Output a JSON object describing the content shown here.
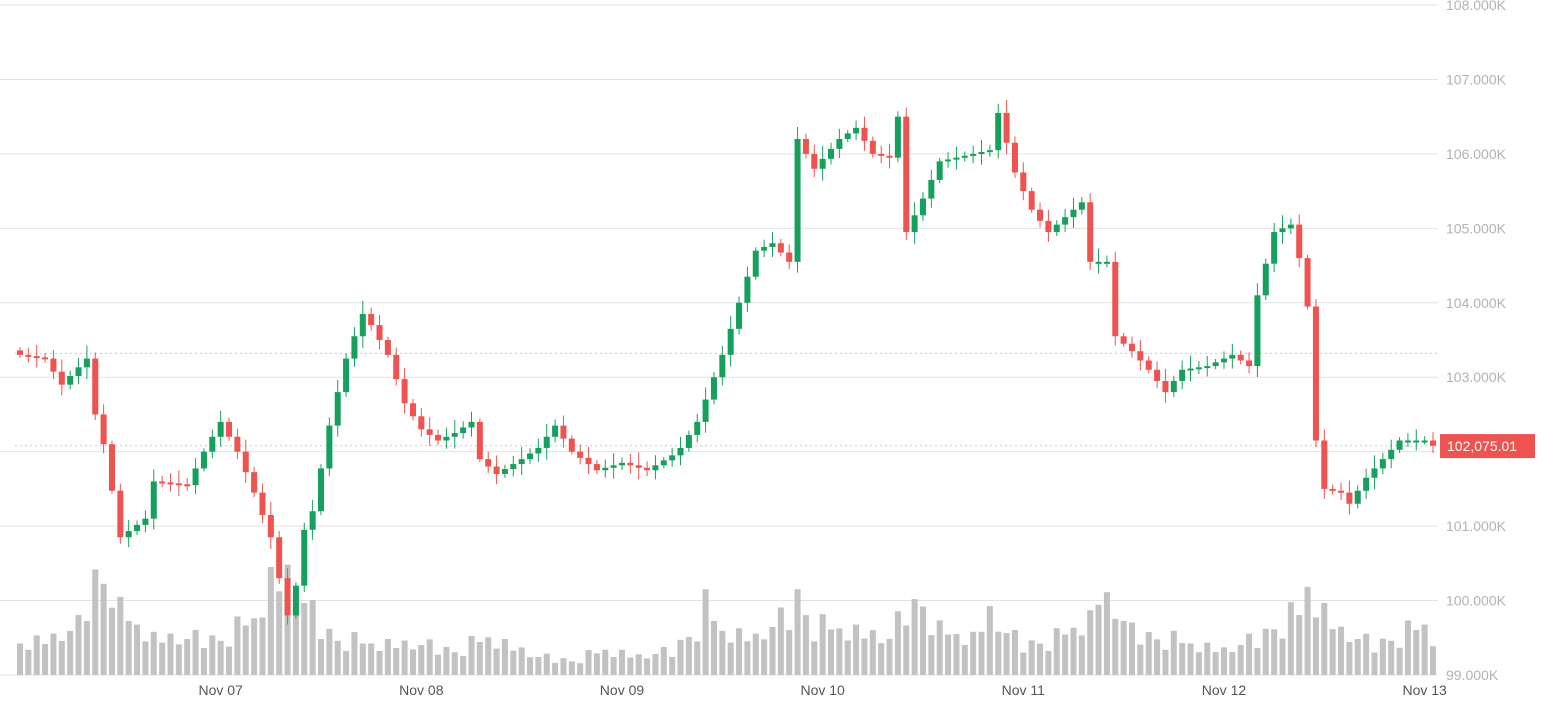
{
  "chart_data": {
    "type": "candlestick",
    "title": "",
    "xlabel": "",
    "ylabel": "",
    "ylim": [
      99000,
      108000
    ],
    "grid": true,
    "y_ticks": [
      {
        "value": 99000,
        "label": "99.000K"
      },
      {
        "value": 100000,
        "label": "100.000K"
      },
      {
        "value": 101000,
        "label": "101.000K"
      },
      {
        "value": 102000,
        "label": "102.000K"
      },
      {
        "value": 103000,
        "label": "103.000K"
      },
      {
        "value": 104000,
        "label": "104.000K"
      },
      {
        "value": 105000,
        "label": "105.000K"
      },
      {
        "value": 106000,
        "label": "106.000K"
      },
      {
        "value": 107000,
        "label": "107.000K"
      },
      {
        "value": 108000,
        "label": "108.000K"
      }
    ],
    "x_ticks": [
      {
        "index": 24,
        "label": "Nov 07"
      },
      {
        "index": 48,
        "label": "Nov 08"
      },
      {
        "index": 72,
        "label": "Nov 09"
      },
      {
        "index": 96,
        "label": "Nov 10"
      },
      {
        "index": 120,
        "label": "Nov 11"
      },
      {
        "index": 144,
        "label": "Nov 12"
      },
      {
        "index": 168,
        "label": "Nov 13"
      }
    ],
    "reference_lines": [
      103320,
      102080
    ],
    "last_price": {
      "value": 102075.01,
      "label": "102,075.01"
    },
    "colors": {
      "up": "#16a05d",
      "down": "#ef5350",
      "volume": "#c2c2c2",
      "grid": "#e3e3e3",
      "badge": "#ef5350"
    },
    "anchors": [
      [
        0,
        103300
      ],
      [
        3,
        103250
      ],
      [
        5,
        102900
      ],
      [
        8,
        103250
      ],
      [
        9,
        102500
      ],
      [
        10,
        102100
      ],
      [
        12,
        100850
      ],
      [
        15,
        101100
      ],
      [
        16,
        101600
      ],
      [
        20,
        101550
      ],
      [
        22,
        102000
      ],
      [
        24,
        102400
      ],
      [
        26,
        102000
      ],
      [
        28,
        101450
      ],
      [
        30,
        100850
      ],
      [
        31,
        100300
      ],
      [
        32,
        99800
      ],
      [
        33,
        100200
      ],
      [
        34,
        100950
      ],
      [
        35,
        101200
      ],
      [
        37,
        102350
      ],
      [
        39,
        103250
      ],
      [
        41,
        103850
      ],
      [
        42,
        103700
      ],
      [
        44,
        103300
      ],
      [
        46,
        102650
      ],
      [
        48,
        102300
      ],
      [
        50,
        102150
      ],
      [
        52,
        102250
      ],
      [
        54,
        102400
      ],
      [
        55,
        101900
      ],
      [
        57,
        101700
      ],
      [
        60,
        101900
      ],
      [
        62,
        102050
      ],
      [
        64,
        102350
      ],
      [
        66,
        102000
      ],
      [
        69,
        101750
      ],
      [
        72,
        101850
      ],
      [
        75,
        101750
      ],
      [
        78,
        101950
      ],
      [
        79,
        102050
      ],
      [
        81,
        102400
      ],
      [
        84,
        103300
      ],
      [
        86,
        104000
      ],
      [
        88,
        104700
      ],
      [
        90,
        104800
      ],
      [
        92,
        104550
      ],
      [
        93,
        106200
      ],
      [
        95,
        105800
      ],
      [
        98,
        106200
      ],
      [
        100,
        106350
      ],
      [
        102,
        106000
      ],
      [
        104,
        105950
      ],
      [
        105,
        106500
      ],
      [
        106,
        104950
      ],
      [
        108,
        105400
      ],
      [
        110,
        105900
      ],
      [
        112,
        105950
      ],
      [
        114,
        106000
      ],
      [
        116,
        106050
      ],
      [
        117,
        106550
      ],
      [
        119,
        105750
      ],
      [
        121,
        105250
      ],
      [
        123,
        104950
      ],
      [
        125,
        105150
      ],
      [
        127,
        105350
      ],
      [
        128,
        104550
      ],
      [
        130,
        104550
      ],
      [
        131,
        103550
      ],
      [
        133,
        103350
      ],
      [
        135,
        103100
      ],
      [
        137,
        102800
      ],
      [
        139,
        103100
      ],
      [
        142,
        103150
      ],
      [
        145,
        103300
      ],
      [
        147,
        103150
      ],
      [
        148,
        104100
      ],
      [
        150,
        104950
      ],
      [
        152,
        105050
      ],
      [
        153,
        104600
      ],
      [
        154,
        103950
      ],
      [
        155,
        102150
      ],
      [
        156,
        101500
      ],
      [
        158,
        101450
      ],
      [
        159,
        101300
      ],
      [
        161,
        101650
      ],
      [
        163,
        101900
      ],
      [
        165,
        102150
      ],
      [
        166,
        102150
      ],
      [
        168,
        102150
      ],
      [
        169,
        102080
      ]
    ],
    "volume_anchors": [
      [
        0,
        0.25
      ],
      [
        4,
        0.3
      ],
      [
        7,
        0.4
      ],
      [
        9,
        0.8
      ],
      [
        11,
        0.8
      ],
      [
        12,
        0.5
      ],
      [
        14,
        0.4
      ],
      [
        16,
        0.3
      ],
      [
        20,
        0.3
      ],
      [
        24,
        0.3
      ],
      [
        28,
        0.45
      ],
      [
        30,
        0.75
      ],
      [
        32,
        0.8
      ],
      [
        34,
        0.6
      ],
      [
        36,
        0.4
      ],
      [
        38,
        0.3
      ],
      [
        42,
        0.25
      ],
      [
        48,
        0.25
      ],
      [
        52,
        0.2
      ],
      [
        56,
        0.3
      ],
      [
        60,
        0.2
      ],
      [
        62,
        0.15
      ],
      [
        66,
        0.12
      ],
      [
        70,
        0.2
      ],
      [
        74,
        0.15
      ],
      [
        78,
        0.2
      ],
      [
        81,
        0.4
      ],
      [
        82,
        0.55
      ],
      [
        84,
        0.35
      ],
      [
        88,
        0.3
      ],
      [
        92,
        0.5
      ],
      [
        93,
        0.65
      ],
      [
        95,
        0.4
      ],
      [
        100,
        0.35
      ],
      [
        104,
        0.3
      ],
      [
        106,
        0.55
      ],
      [
        108,
        0.6
      ],
      [
        110,
        0.35
      ],
      [
        114,
        0.3
      ],
      [
        116,
        0.5
      ],
      [
        118,
        0.35
      ],
      [
        120,
        0.25
      ],
      [
        124,
        0.3
      ],
      [
        128,
        0.45
      ],
      [
        129,
        0.65
      ],
      [
        131,
        0.55
      ],
      [
        133,
        0.35
      ],
      [
        137,
        0.3
      ],
      [
        140,
        0.25
      ],
      [
        144,
        0.2
      ],
      [
        148,
        0.3
      ],
      [
        150,
        0.4
      ],
      [
        153,
        0.5
      ],
      [
        154,
        0.7
      ],
      [
        156,
        0.5
      ],
      [
        158,
        0.35
      ],
      [
        162,
        0.25
      ],
      [
        166,
        0.35
      ],
      [
        168,
        0.4
      ],
      [
        169,
        0.3
      ]
    ],
    "volume_pattern": [
      1.05,
      0.8,
      1.2,
      0.9,
      1.15,
      0.85,
      1.0,
      1.25,
      0.75,
      1.1,
      0.95,
      0.7,
      1.3,
      1.0
    ]
  }
}
